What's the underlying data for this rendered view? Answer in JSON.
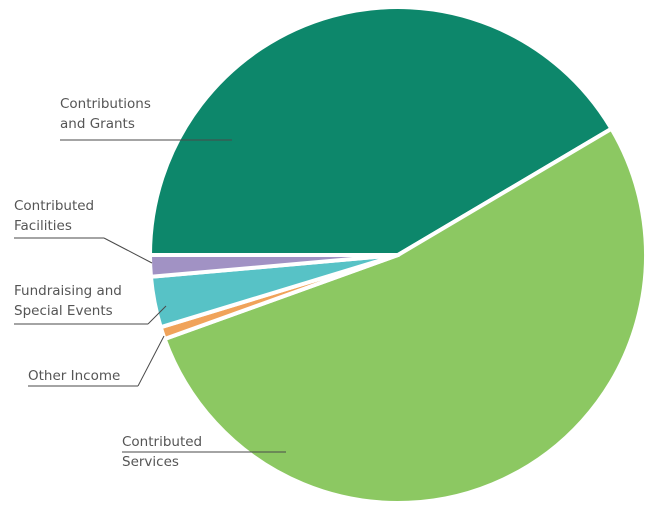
{
  "chart_data": {
    "type": "pie",
    "title": "",
    "categories": [
      "Contributions and Grants",
      "Contributed Services",
      "Other Income",
      "Fundraising and Special Events",
      "Contributed Facilities"
    ],
    "label_lines": [
      [
        "Contributions",
        "and Grants"
      ],
      [
        "Contributed",
        "Services"
      ],
      [
        "Other Income"
      ],
      [
        "Fundraising and",
        "Special Events"
      ],
      [
        "Contributed",
        "Facilities"
      ]
    ],
    "values": [
      41.5,
      53.0,
      0.8,
      3.3,
      1.4
    ],
    "unit": "%",
    "colors": [
      "#0d876b",
      "#8cc862",
      "#f0a35a",
      "#57c2c6",
      "#a192c4"
    ],
    "legend": "none"
  }
}
